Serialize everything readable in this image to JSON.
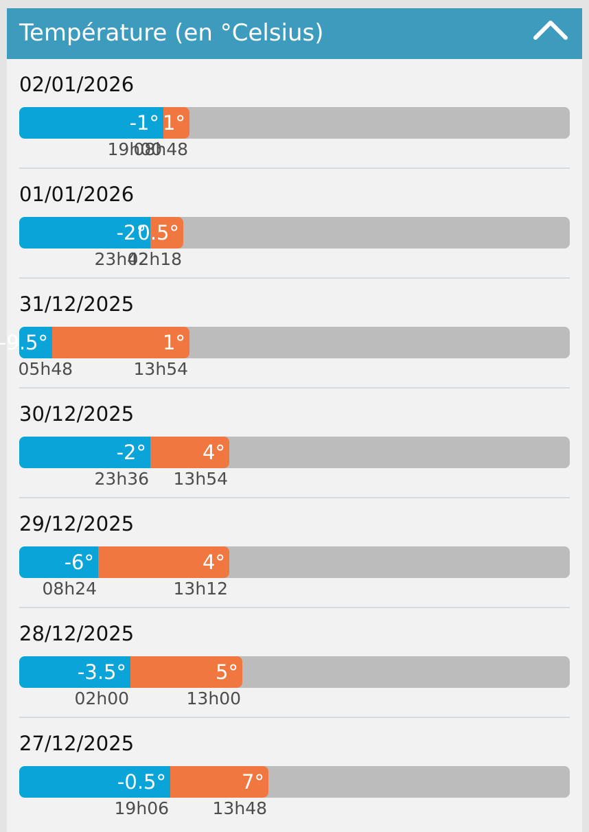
{
  "header": {
    "title": "Température (en °Celsius)",
    "collapse_icon": "chevron-up-icon"
  },
  "scale": {
    "min_c": -12,
    "max_c": 30
  },
  "colors": {
    "header": "#3d9cbd",
    "min_bar": "#0aa4d8",
    "max_bar": "#f07840",
    "track": "#bcbcbc"
  },
  "days": [
    {
      "date": "02/01/2026",
      "min_label": "-1°",
      "min_c": -1,
      "min_time": "19h00",
      "max_label": "1°",
      "max_c": 1,
      "max_time": "08h48"
    },
    {
      "date": "01/01/2026",
      "min_label": "-2°",
      "min_c": -2,
      "min_time": "23h42",
      "max_label": "0.5°",
      "max_c": 0.5,
      "max_time": "02h18"
    },
    {
      "date": "31/12/2025",
      "min_label": "-9.5°",
      "min_c": -9.5,
      "min_time": "05h48",
      "max_label": "1°",
      "max_c": 1,
      "max_time": "13h54"
    },
    {
      "date": "30/12/2025",
      "min_label": "-2°",
      "min_c": -2,
      "min_time": "23h36",
      "max_label": "4°",
      "max_c": 4,
      "max_time": "13h54"
    },
    {
      "date": "29/12/2025",
      "min_label": "-6°",
      "min_c": -6,
      "min_time": "08h24",
      "max_label": "4°",
      "max_c": 4,
      "max_time": "13h12"
    },
    {
      "date": "28/12/2025",
      "min_label": "-3.5°",
      "min_c": -3.5,
      "min_time": "02h00",
      "max_label": "5°",
      "max_c": 5,
      "max_time": "13h00"
    },
    {
      "date": "27/12/2025",
      "min_label": "-0.5°",
      "min_c": -0.5,
      "min_time": "19h06",
      "max_label": "7°",
      "max_c": 7,
      "max_time": "13h48"
    }
  ]
}
